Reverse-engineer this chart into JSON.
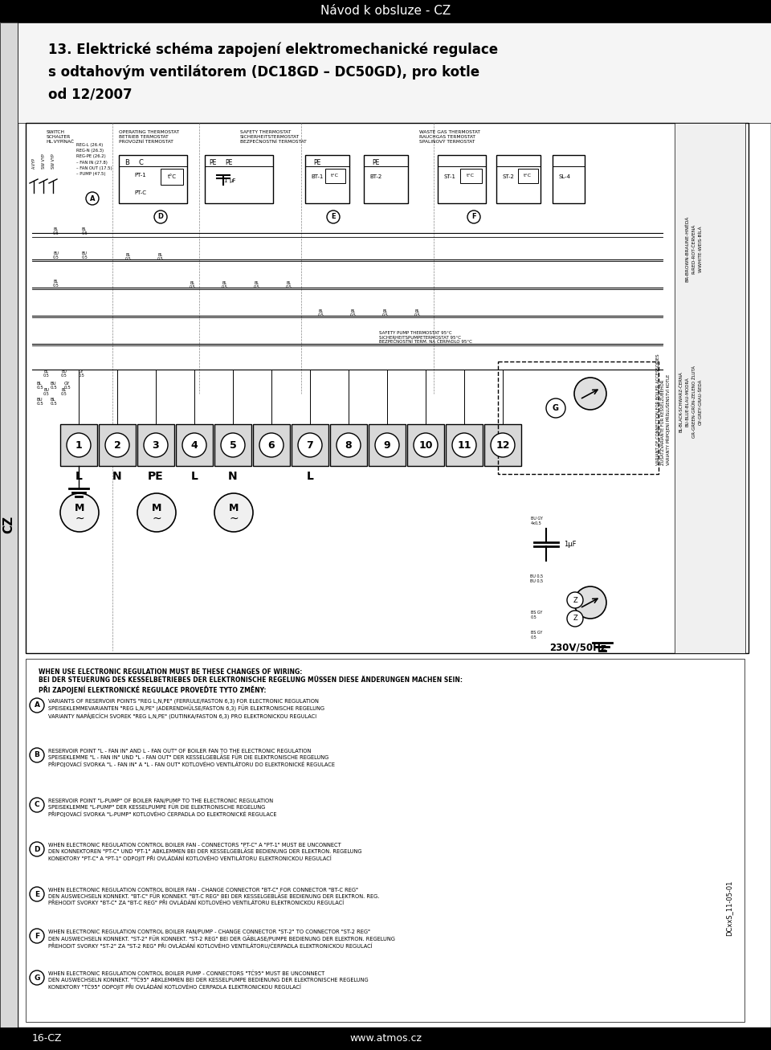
{
  "page_width": 9.6,
  "page_height": 13.07,
  "dpi": 100,
  "bg_color": "#ffffff",
  "header_color": "#000000",
  "header_text": "Návod k obsluze - CZ",
  "header_text_color": "#ffffff",
  "header_font_size": 11,
  "footer_color": "#000000",
  "footer_left": "16-CZ",
  "footer_right": "www.atmos.cz",
  "footer_font_size": 9,
  "title_line1": "13. Elektrické schéma zapojení elektromechanické regulace",
  "title_line2": "s odtahovým ventilátorem (DC18GD – DC50GD), pro kotle",
  "title_line3": "od 12/2007",
  "title_font_size": 12,
  "title_font_weight": "bold",
  "side_label": "CZ",
  "diagram_border_color": "#000000"
}
